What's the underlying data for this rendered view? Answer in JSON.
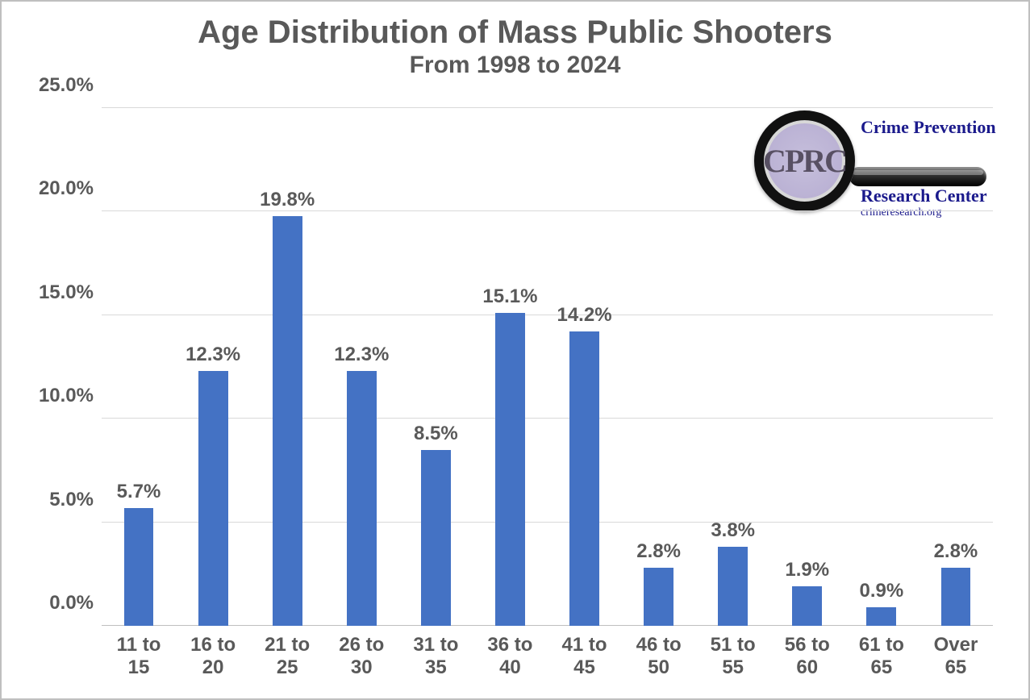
{
  "chart": {
    "type": "bar",
    "title": "Age Distribution of Mass Public Shooters",
    "title_fontsize": 40,
    "title_color": "#595959",
    "subtitle": "From 1998 to 2024",
    "subtitle_fontsize": 30,
    "subtitle_color": "#595959",
    "background_color": "#ffffff",
    "border_color": "#bfbfbf",
    "grid_color": "#d9d9d9",
    "axis_color": "#bfbfbf",
    "ylim": [
      0,
      25
    ],
    "ytick_step": 5,
    "yticks": [
      "0.0%",
      "5.0%",
      "10.0%",
      "15.0%",
      "20.0%",
      "25.0%"
    ],
    "axis_label_fontsize": 24,
    "axis_label_color": "#595959",
    "data_label_fontsize": 24,
    "data_label_color": "#595959",
    "bar_color": "#4472c4",
    "bar_width": 0.4,
    "categories": [
      "11 to\n15",
      "16 to\n20",
      "21 to\n25",
      "26 to\n30",
      "31 to\n35",
      "36 to\n40",
      "41 to\n45",
      "46 to\n50",
      "51 to\n55",
      "56 to\n60",
      "61 to\n65",
      "Over\n65"
    ],
    "values": [
      5.7,
      12.3,
      19.8,
      12.3,
      8.5,
      15.1,
      14.2,
      2.8,
      3.8,
      1.9,
      0.9,
      2.8
    ],
    "value_labels": [
      "5.7%",
      "12.3%",
      "19.8%",
      "12.3%",
      "8.5%",
      "15.1%",
      "14.2%",
      "2.8%",
      "3.8%",
      "1.9%",
      "0.9%",
      "2.8%"
    ]
  },
  "logo": {
    "glass_text": "CPRC",
    "line1": "Crime Prevention",
    "line2": "Research Center",
    "line3": "crimeresearch.org",
    "text_color": "#1b1a8c",
    "glass_bg": "#b9b0d3",
    "ring_color": "#111111"
  }
}
